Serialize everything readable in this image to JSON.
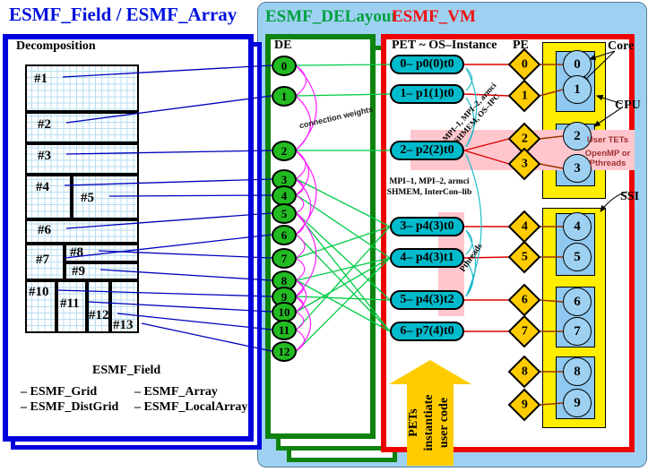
{
  "titles": {
    "field_array": "ESMF_Field / ESMF_Array",
    "delayout": "ESMF_DELayout",
    "vm": "ESMF_VM"
  },
  "decomposition": {
    "title": "Decomposition",
    "regions": [
      "#1",
      "#2",
      "#3",
      "#4",
      "#5",
      "#6",
      "#7",
      "#8",
      "#9",
      "#10",
      "#11",
      "#12",
      "#13"
    ],
    "footer_title": "ESMF_Field",
    "footer_items": [
      "– ESMF_Grid",
      "– ESMF_Array",
      "– ESMF_DistGrid",
      "– ESMF_LocalArray"
    ]
  },
  "delayout": {
    "header": "DE",
    "de_items": [
      "0",
      "1",
      "2",
      "3",
      "4",
      "5",
      "6",
      "7",
      "8",
      "9",
      "10",
      "11",
      "12"
    ],
    "connection_label": "connection weights"
  },
  "vm": {
    "pet_header": "PET ~ OS–Instance",
    "pe_header": "PE",
    "pets": [
      "0– p0(0)t0",
      "1– p1(1)t0",
      "2– p2(2)t0",
      "3– p4(3)t0",
      "4– p4(3)t1",
      "5– p4(3)t2",
      "6– p7(4)t0"
    ],
    "pes": [
      "0",
      "1",
      "2",
      "3",
      "4",
      "5",
      "6",
      "7",
      "8",
      "9"
    ],
    "cores": [
      "0",
      "1",
      "2",
      "3",
      "4",
      "5",
      "6",
      "7",
      "8",
      "9"
    ],
    "labels": {
      "core": "Core",
      "cpu": "CPU",
      "ssi": "SSI"
    },
    "user_tets": [
      "User TETs",
      "OpenMP or",
      "Pthreads"
    ],
    "comm_rotated": [
      "MPI–1, MPI–2, armci",
      "SHMEM, OS–IPC"
    ],
    "comm_horizontal": [
      "MPI–1, MPI–2, armci",
      "SHMEM, InterCon–lib"
    ],
    "pthreads_label": "Pthreads",
    "arrow_text": [
      "PETs",
      "instantiate",
      "user code"
    ]
  },
  "connections": {
    "region_to_de": [
      [
        0,
        0
      ],
      [
        1,
        1
      ],
      [
        2,
        2
      ],
      [
        3,
        3
      ],
      [
        4,
        4
      ],
      [
        5,
        5
      ],
      [
        6,
        6
      ],
      [
        7,
        7
      ],
      [
        8,
        8
      ],
      [
        9,
        9
      ],
      [
        10,
        10
      ],
      [
        11,
        11
      ],
      [
        12,
        12
      ]
    ],
    "de_to_pet": [
      [
        0,
        0
      ],
      [
        1,
        1
      ],
      [
        2,
        2
      ],
      [
        3,
        3
      ],
      [
        7,
        3
      ],
      [
        11,
        3
      ],
      [
        4,
        4
      ],
      [
        8,
        4
      ],
      [
        10,
        4
      ],
      [
        12,
        4
      ],
      [
        5,
        5
      ],
      [
        9,
        5
      ],
      [
        6,
        6
      ],
      [
        5,
        6
      ],
      [
        8,
        6
      ]
    ],
    "pet_to_pe": [
      [
        0,
        0
      ],
      [
        1,
        1
      ],
      [
        2,
        2
      ],
      [
        2,
        3
      ],
      [
        3,
        4
      ],
      [
        4,
        5
      ],
      [
        5,
        6
      ],
      [
        6,
        7
      ]
    ],
    "pe_to_core": [
      [
        0,
        0
      ],
      [
        1,
        1
      ],
      [
        2,
        2
      ],
      [
        3,
        3
      ],
      [
        4,
        4
      ],
      [
        5,
        5
      ],
      [
        6,
        6
      ],
      [
        7,
        7
      ],
      [
        8,
        8
      ],
      [
        9,
        9
      ]
    ],
    "de_arcs": [
      [
        0,
        1
      ],
      [
        1,
        2
      ],
      [
        0,
        2
      ],
      [
        2,
        3
      ],
      [
        2,
        4
      ],
      [
        3,
        4
      ],
      [
        4,
        5
      ],
      [
        5,
        6
      ],
      [
        6,
        7
      ],
      [
        3,
        6
      ],
      [
        7,
        8
      ],
      [
        8,
        9
      ],
      [
        9,
        10
      ],
      [
        8,
        10
      ],
      [
        10,
        11
      ],
      [
        11,
        12
      ],
      [
        9,
        12
      ],
      [
        5,
        9
      ],
      [
        2,
        6
      ]
    ],
    "pet_arcs": [
      [
        0,
        1
      ],
      [
        1,
        2
      ],
      [
        0,
        2
      ],
      [
        2,
        5
      ],
      [
        3,
        4
      ],
      [
        4,
        5
      ],
      [
        3,
        5
      ]
    ]
  },
  "colors": {
    "blue_border": "#0000dd",
    "green_border": "#0e830e",
    "red_border": "#ee0000",
    "panel_blue": "#9ed1f1",
    "de_green": "#22bb22",
    "pet_teal": "#00bbcc",
    "pe_gold": "#ffcc00",
    "ssi_yellow": "#ffee00",
    "cpu_blue": "#8fc8f0",
    "pink_band": "#ffc6cd",
    "line_blue": "#0000bb",
    "line_green": "#00cc44",
    "line_red": "#dd0000",
    "line_brown": "#993300",
    "arc_magenta": "#ff22ff",
    "arc_cyan": "#22bbcc",
    "user_tets_text": "#a03030"
  }
}
